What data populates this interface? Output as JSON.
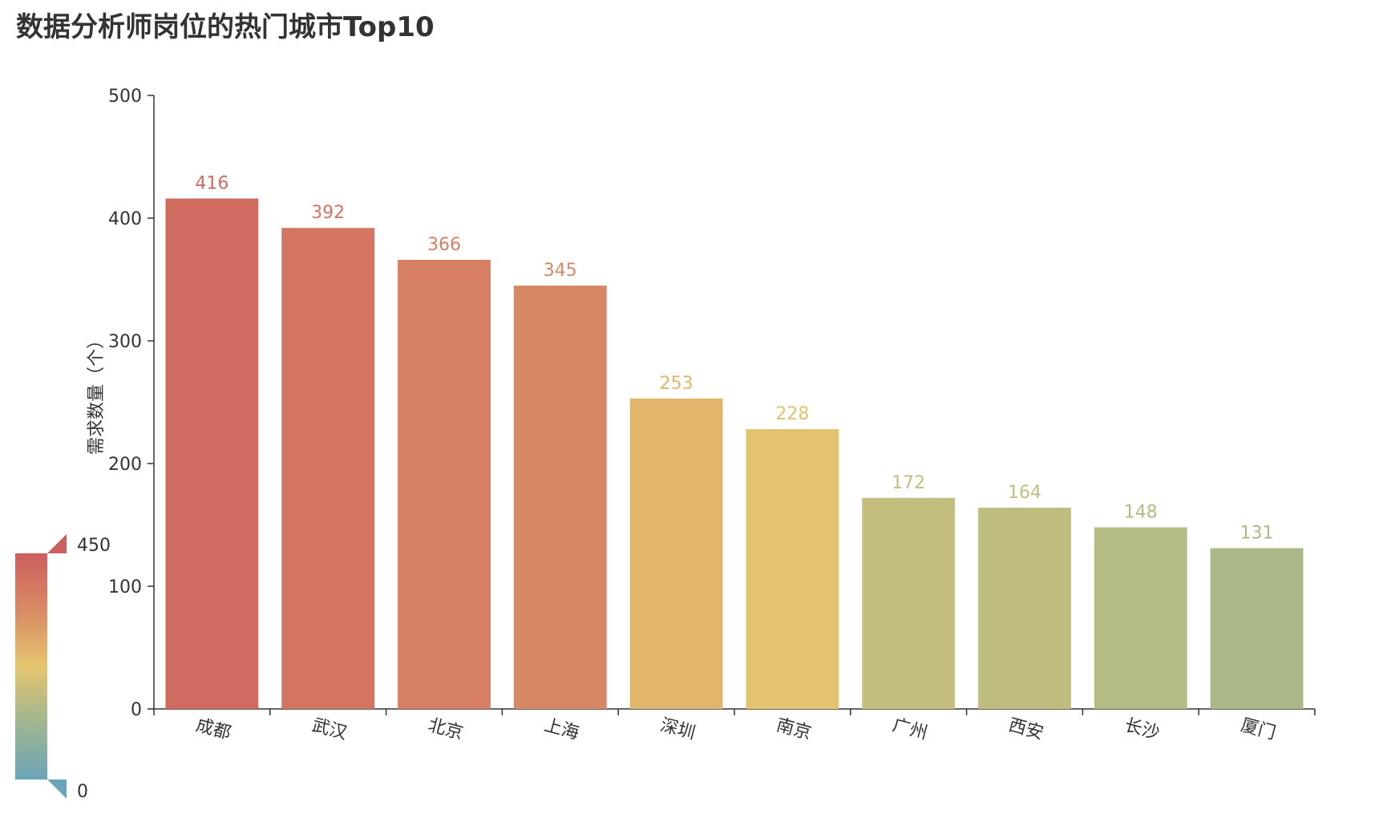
{
  "chart_data": {
    "type": "bar",
    "title": "数据分析师岗位的热门城市Top10",
    "ylabel": "需求数量（个）",
    "xlabel": "",
    "categories": [
      "成都",
      "武汉",
      "北京",
      "上海",
      "深圳",
      "南京",
      "广州",
      "西安",
      "长沙",
      "厦门"
    ],
    "values": [
      416,
      392,
      366,
      345,
      253,
      228,
      172,
      164,
      148,
      131
    ],
    "ylim": [
      0,
      500
    ],
    "yticks": [
      0,
      100,
      200,
      300,
      400,
      500
    ],
    "grid": false,
    "bar_labels": true,
    "visual_map": {
      "min": 0,
      "max": 450,
      "min_label": "0",
      "max_label": "450",
      "placement": "bottom-left",
      "colors": [
        "#6aa4b9",
        "#a0b690",
        "#e4c56e",
        "#d98a64",
        "#cc5f5d"
      ]
    }
  }
}
